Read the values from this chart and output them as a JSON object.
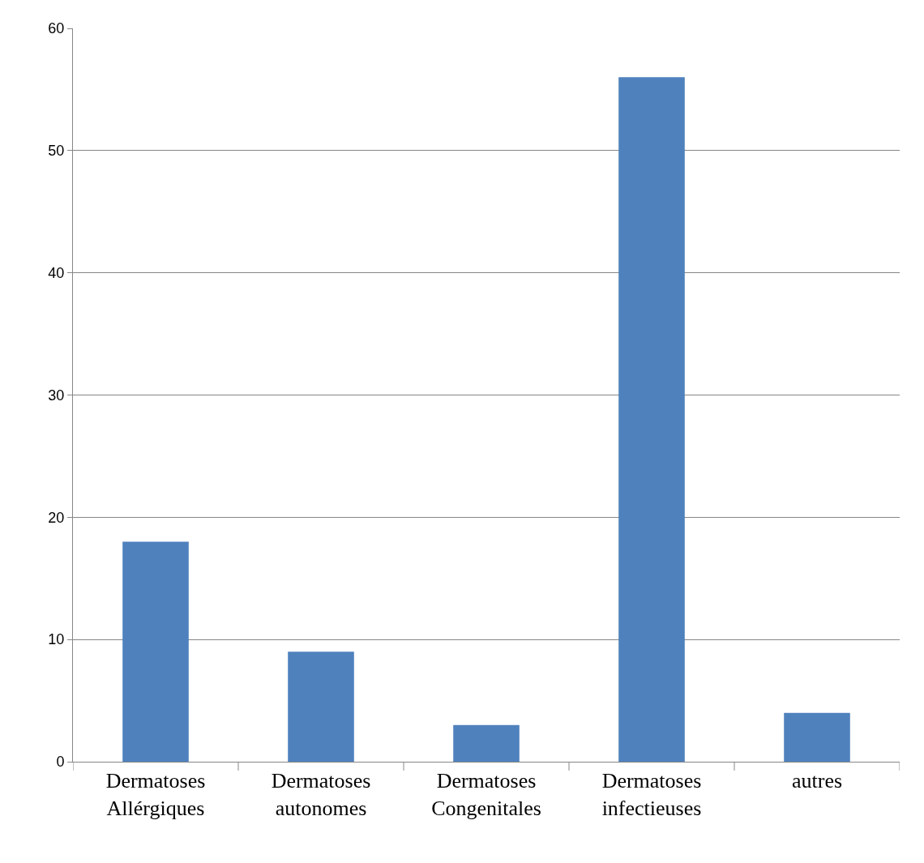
{
  "chart_data": {
    "type": "bar",
    "categories": [
      "Dermatoses\nAllérgiques",
      "Dermatoses\nautonomes",
      "Dermatoses\nCongenitales",
      "Dermatoses\ninfectieuses",
      "autres"
    ],
    "values": [
      18,
      9,
      3,
      56,
      4
    ],
    "color": "#4f81bd",
    "ylim": [
      0,
      60
    ],
    "yticks": [
      0,
      10,
      20,
      30,
      40,
      50,
      60
    ],
    "grid": "y"
  }
}
